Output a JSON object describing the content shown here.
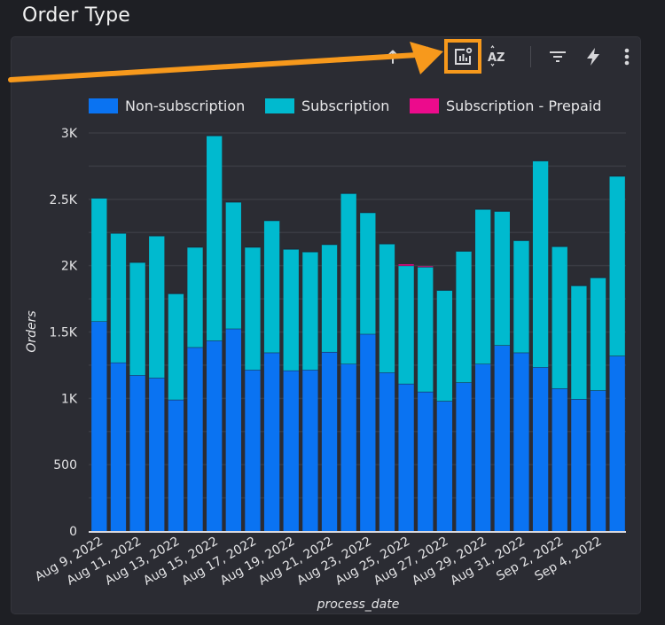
{
  "page": {
    "title": "Order Type"
  },
  "toolbar": {
    "buttons": [
      {
        "name": "sort-ascending",
        "icon": "arrow-up-icon"
      },
      {
        "name": "chart-settings",
        "icon": "chart-settings-icon",
        "highlighted": true
      },
      {
        "name": "sort-az",
        "icon": "sort-az-icon",
        "label": "AZ"
      },
      {
        "name": "filter",
        "icon": "filter-icon"
      },
      {
        "name": "quick-insights",
        "icon": "lightning-icon"
      },
      {
        "name": "more-options",
        "icon": "more-vertical-icon"
      }
    ]
  },
  "annotation": {
    "arrow_color": "#f7991c",
    "highlight_color": "#f7991c"
  },
  "chart_data": {
    "type": "bar",
    "stacked": true,
    "title": "",
    "xlabel": "process_date",
    "ylabel": "Orders",
    "ylim": [
      0,
      3000
    ],
    "yticks": [
      0,
      500,
      1000,
      1500,
      2000,
      2500,
      3000
    ],
    "ytick_labels": [
      "0",
      "500",
      "1K",
      "1.5K",
      "2K",
      "2.5K",
      "3K"
    ],
    "grid": true,
    "legend_position": "top",
    "categories": [
      "Aug 9, 2022",
      "Aug 10, 2022",
      "Aug 11, 2022",
      "Aug 12, 2022",
      "Aug 13, 2022",
      "Aug 14, 2022",
      "Aug 15, 2022",
      "Aug 16, 2022",
      "Aug 17, 2022",
      "Aug 18, 2022",
      "Aug 19, 2022",
      "Aug 20, 2022",
      "Aug 21, 2022",
      "Aug 22, 2022",
      "Aug 23, 2022",
      "Aug 24, 2022",
      "Aug 25, 2022",
      "Aug 26, 2022",
      "Aug 27, 2022",
      "Aug 28, 2022",
      "Aug 29, 2022",
      "Aug 30, 2022",
      "Aug 31, 2022",
      "Sep 1, 2022",
      "Sep 2, 2022",
      "Sep 3, 2022",
      "Sep 4, 2022",
      "Sep 5, 2022"
    ],
    "xtick_labels": [
      "Aug 9, 2022",
      "Aug 11, 2022",
      "Aug 13, 2022",
      "Aug 15, 2022",
      "Aug 17, 2022",
      "Aug 19, 2022",
      "Aug 21, 2022",
      "Aug 23, 2022",
      "Aug 25, 2022",
      "Aug 27, 2022",
      "Aug 29, 2022",
      "Aug 31, 2022",
      "Sep 2, 2022",
      "Sep 4, 2022"
    ],
    "series": [
      {
        "name": "Non-subscription",
        "color": "#0a73f2",
        "values": [
          1580,
          1270,
          1175,
          1155,
          990,
          1385,
          1435,
          1525,
          1215,
          1345,
          1210,
          1215,
          1350,
          1260,
          1485,
          1195,
          1110,
          1050,
          980,
          1120,
          1260,
          1400,
          1345,
          1235,
          1075,
          995,
          1060,
          1320
        ]
      },
      {
        "name": "Subscription",
        "color": "#00bacf",
        "values": [
          930,
          975,
          850,
          1070,
          800,
          755,
          1545,
          955,
          925,
          995,
          915,
          890,
          810,
          1285,
          915,
          970,
          890,
          940,
          835,
          990,
          1165,
          1010,
          845,
          1555,
          1070,
          855,
          850,
          1355
        ]
      },
      {
        "name": "Subscription - Prepaid",
        "color": "#ec0b8c",
        "values": [
          0,
          0,
          0,
          0,
          0,
          0,
          0,
          0,
          0,
          0,
          0,
          0,
          0,
          0,
          0,
          0,
          10,
          5,
          0,
          0,
          0,
          0,
          0,
          0,
          0,
          0,
          0,
          0
        ]
      }
    ]
  }
}
